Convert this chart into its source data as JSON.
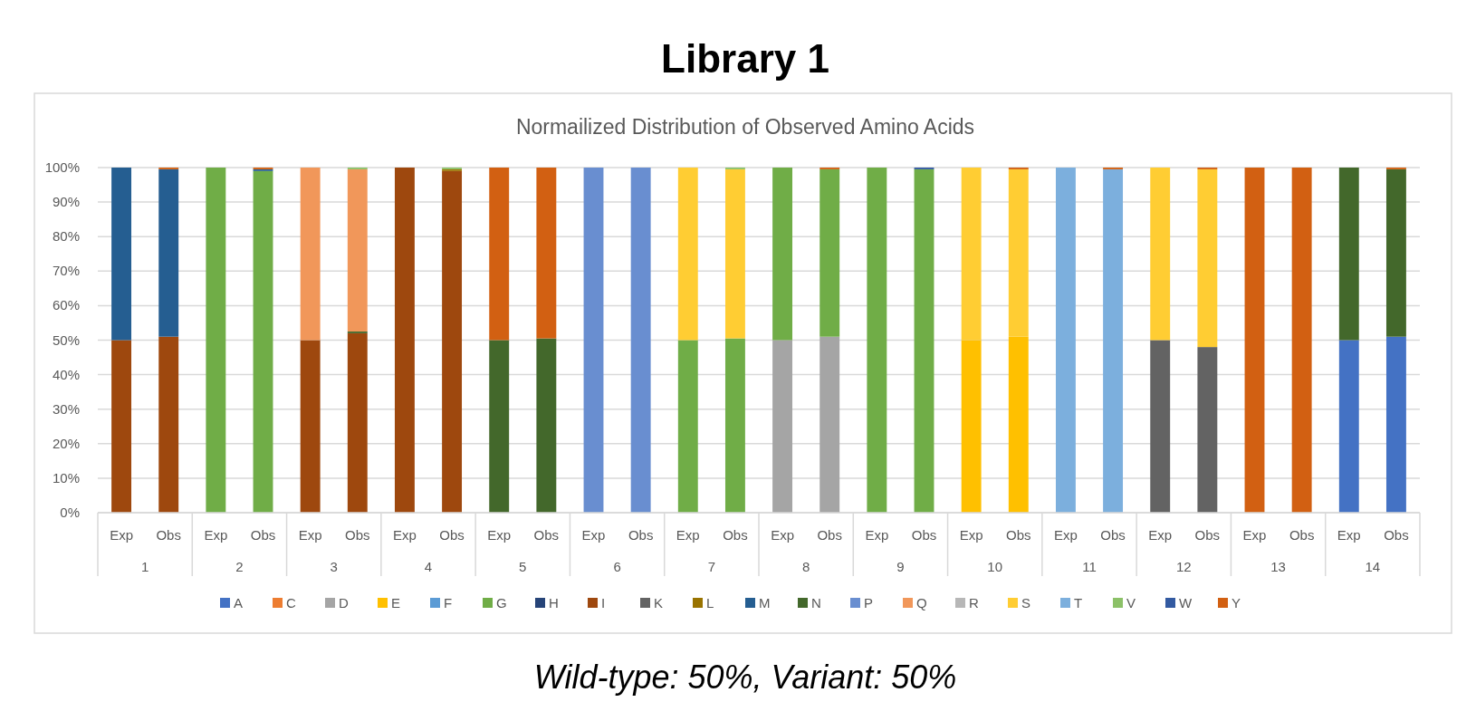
{
  "chart_data": {
    "type": "bar",
    "stacked": true,
    "title": "Library 1",
    "subtitle": "Normailized Distribution of Observed Amino Acids",
    "categories": [
      "Exp",
      "Obs",
      "Exp",
      "Obs",
      "Exp",
      "Obs",
      "Exp",
      "Obs",
      "Exp",
      "Obs",
      "Exp",
      "Obs",
      "Exp",
      "Obs",
      "Exp",
      "Obs",
      "Exp",
      "Obs",
      "Exp",
      "Obs",
      "Exp",
      "Obs",
      "Exp",
      "Obs",
      "Exp",
      "Obs",
      "Exp",
      "Obs"
    ],
    "annotations": [
      "1",
      "2",
      "3",
      "4",
      "5",
      "6",
      "7",
      "8",
      "9",
      "10",
      "11",
      "12",
      "13",
      "14",
      "Wild-type: 50%, Variant: 50%"
    ],
    "ylim": [
      0,
      100
    ],
    "yticks": [
      {
        "value": 0,
        "label": "0%"
      },
      {
        "value": 10,
        "label": "10%"
      },
      {
        "value": 20,
        "label": "20%"
      },
      {
        "value": 30,
        "label": "30%"
      },
      {
        "value": 40,
        "label": "40%"
      },
      {
        "value": 50,
        "label": "50%"
      },
      {
        "value": 60,
        "label": "60%"
      },
      {
        "value": 70,
        "label": "70%"
      },
      {
        "value": 80,
        "label": "80%"
      },
      {
        "value": 90,
        "label": "90%"
      },
      {
        "value": 100,
        "label": "100%"
      }
    ],
    "grid": "y",
    "legend": "bottom",
    "series": [
      {
        "name": "A",
        "color": "#4472c4",
        "values": [
          null,
          null,
          null,
          null,
          null,
          null,
          null,
          null,
          null,
          null,
          null,
          null,
          null,
          null,
          null,
          null,
          null,
          null,
          null,
          null,
          null,
          null,
          null,
          null,
          null,
          null,
          50,
          51
        ]
      },
      {
        "name": "C",
        "color": "#ed7d31",
        "values": [
          null,
          null,
          null,
          null,
          null,
          null,
          null,
          null,
          null,
          null,
          null,
          null,
          null,
          null,
          null,
          null,
          null,
          null,
          null,
          null,
          null,
          null,
          null,
          null,
          null,
          null,
          null,
          null
        ]
      },
      {
        "name": "D",
        "color": "#a5a5a5",
        "values": [
          null,
          null,
          null,
          null,
          null,
          null,
          null,
          null,
          null,
          null,
          null,
          null,
          null,
          null,
          50,
          51,
          null,
          null,
          null,
          null,
          null,
          null,
          null,
          null,
          null,
          null,
          null,
          null
        ]
      },
      {
        "name": "E",
        "color": "#ffc000",
        "values": [
          null,
          null,
          null,
          null,
          null,
          null,
          null,
          null,
          null,
          null,
          null,
          null,
          null,
          null,
          null,
          null,
          null,
          null,
          50,
          51,
          null,
          null,
          null,
          null,
          null,
          null,
          null,
          null
        ]
      },
      {
        "name": "F",
        "color": "#5b9bd5",
        "values": [
          null,
          null,
          null,
          null,
          null,
          null,
          null,
          null,
          null,
          null,
          null,
          null,
          null,
          null,
          null,
          null,
          null,
          null,
          null,
          null,
          null,
          null,
          null,
          null,
          null,
          null,
          null,
          null
        ]
      },
      {
        "name": "G",
        "color": "#70ad47",
        "values": [
          null,
          null,
          100,
          99,
          null,
          null,
          null,
          null,
          null,
          null,
          null,
          null,
          50,
          50.5,
          50,
          48.5,
          100,
          99.5,
          null,
          null,
          null,
          null,
          null,
          null,
          null,
          null,
          null,
          null
        ]
      },
      {
        "name": "H",
        "color": "#264478",
        "values": [
          null,
          null,
          null,
          null,
          null,
          null,
          null,
          null,
          null,
          null,
          null,
          null,
          null,
          null,
          null,
          null,
          null,
          null,
          null,
          null,
          null,
          null,
          null,
          null,
          null,
          null,
          null,
          null
        ]
      },
      {
        "name": "I",
        "color": "#9e480e",
        "values": [
          50,
          51,
          null,
          null,
          50,
          52,
          100,
          99,
          null,
          null,
          null,
          null,
          null,
          null,
          null,
          null,
          null,
          null,
          null,
          null,
          null,
          null,
          null,
          null,
          null,
          null,
          null,
          null
        ]
      },
      {
        "name": "K",
        "color": "#636363",
        "values": [
          null,
          null,
          null,
          null,
          null,
          null,
          null,
          null,
          null,
          null,
          null,
          null,
          null,
          null,
          null,
          null,
          null,
          null,
          null,
          null,
          null,
          null,
          50,
          48,
          null,
          null,
          null,
          null
        ]
      },
      {
        "name": "L",
        "color": "#997300",
        "values": [
          null,
          null,
          null,
          null,
          null,
          null,
          null,
          0.5,
          null,
          null,
          null,
          null,
          null,
          null,
          null,
          null,
          null,
          null,
          null,
          null,
          null,
          null,
          null,
          null,
          null,
          null,
          null,
          null
        ]
      },
      {
        "name": "M",
        "color": "#255e91",
        "values": [
          50,
          48.5,
          null,
          0.5,
          null,
          null,
          null,
          null,
          null,
          null,
          null,
          null,
          null,
          null,
          null,
          null,
          null,
          null,
          null,
          null,
          null,
          null,
          null,
          null,
          null,
          null,
          null,
          null
        ]
      },
      {
        "name": "N",
        "color": "#43682b",
        "values": [
          null,
          null,
          null,
          null,
          null,
          0.5,
          null,
          null,
          50,
          50.5,
          null,
          null,
          null,
          null,
          null,
          null,
          null,
          null,
          null,
          null,
          null,
          null,
          null,
          null,
          null,
          null,
          50,
          48.5
        ]
      },
      {
        "name": "P",
        "color": "#698ed0",
        "values": [
          null,
          null,
          null,
          null,
          null,
          null,
          null,
          null,
          null,
          null,
          100,
          100,
          null,
          null,
          null,
          null,
          null,
          null,
          null,
          null,
          null,
          null,
          null,
          null,
          null,
          null,
          null,
          null
        ]
      },
      {
        "name": "Q",
        "color": "#f1975a",
        "values": [
          null,
          null,
          null,
          null,
          50,
          47,
          null,
          null,
          null,
          null,
          null,
          null,
          null,
          null,
          null,
          null,
          null,
          null,
          null,
          null,
          null,
          null,
          null,
          null,
          null,
          null,
          null,
          null
        ]
      },
      {
        "name": "R",
        "color": "#b7b7b7",
        "values": [
          null,
          null,
          null,
          null,
          null,
          null,
          null,
          null,
          null,
          null,
          null,
          null,
          null,
          null,
          null,
          null,
          null,
          null,
          null,
          null,
          null,
          null,
          null,
          null,
          null,
          null,
          null,
          null
        ]
      },
      {
        "name": "S",
        "color": "#ffcd33",
        "values": [
          null,
          null,
          null,
          null,
          null,
          null,
          null,
          null,
          null,
          null,
          null,
          null,
          50,
          49,
          null,
          null,
          null,
          null,
          50,
          48.5,
          null,
          null,
          50,
          51.5,
          null,
          null,
          null,
          null
        ]
      },
      {
        "name": "T",
        "color": "#7cafdd",
        "values": [
          null,
          null,
          null,
          null,
          null,
          null,
          null,
          null,
          null,
          null,
          null,
          null,
          null,
          null,
          null,
          null,
          null,
          null,
          null,
          null,
          100,
          99.5,
          null,
          null,
          null,
          null,
          null,
          null
        ]
      },
      {
        "name": "V",
        "color": "#8cc168",
        "values": [
          null,
          null,
          null,
          null,
          null,
          0.5,
          null,
          0.5,
          null,
          null,
          null,
          null,
          null,
          0.5,
          null,
          null,
          null,
          null,
          null,
          null,
          null,
          null,
          null,
          null,
          null,
          null,
          null,
          null
        ]
      },
      {
        "name": "W",
        "color": "#335aa1",
        "values": [
          null,
          null,
          null,
          null,
          null,
          null,
          null,
          null,
          null,
          null,
          null,
          null,
          null,
          null,
          null,
          null,
          null,
          0.5,
          null,
          null,
          null,
          null,
          null,
          null,
          null,
          null,
          null,
          null
        ]
      },
      {
        "name": "Y",
        "color": "#d26012",
        "values": [
          null,
          0.5,
          null,
          0.5,
          null,
          null,
          null,
          null,
          50,
          49.5,
          null,
          null,
          null,
          null,
          null,
          0.5,
          null,
          null,
          null,
          0.5,
          null,
          0.5,
          null,
          0.5,
          100,
          100,
          null,
          0.5
        ]
      }
    ]
  }
}
